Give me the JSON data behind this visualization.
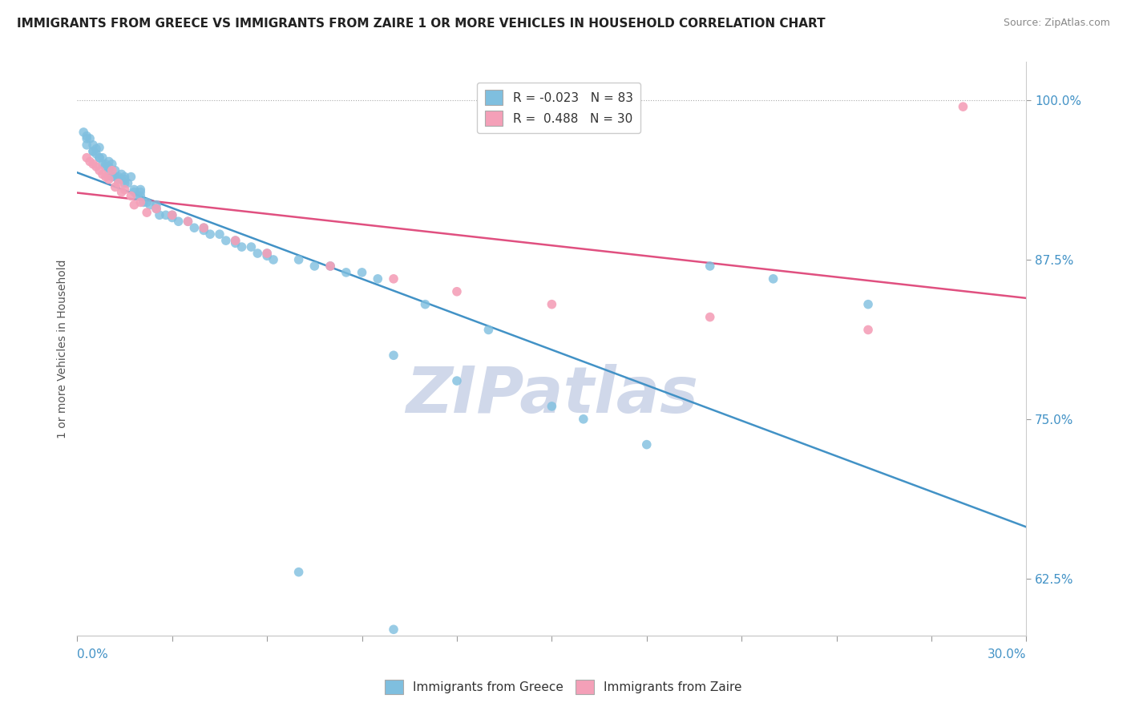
{
  "title": "IMMIGRANTS FROM GREECE VS IMMIGRANTS FROM ZAIRE 1 OR MORE VEHICLES IN HOUSEHOLD CORRELATION CHART",
  "source": "Source: ZipAtlas.com",
  "ylabel_label": "1 or more Vehicles in Household",
  "legend_blue_label": "Immigrants from Greece",
  "legend_pink_label": "Immigrants from Zaire",
  "R_blue": -0.023,
  "N_blue": 83,
  "R_pink": 0.488,
  "N_pink": 30,
  "x_min": 0.0,
  "x_max": 30.0,
  "y_min": 58.0,
  "y_max": 103.0,
  "blue_color": "#7fbfdf",
  "pink_color": "#f4a0b8",
  "blue_line_color": "#4292c6",
  "pink_line_color": "#e05080",
  "watermark_color": "#d0d8ea",
  "blue_scatter_x": [
    0.2,
    0.3,
    0.3,
    0.4,
    0.5,
    0.5,
    0.6,
    0.6,
    0.7,
    0.7,
    0.8,
    0.8,
    0.9,
    0.9,
    1.0,
    1.0,
    1.0,
    1.1,
    1.1,
    1.2,
    1.2,
    1.3,
    1.3,
    1.4,
    1.4,
    1.5,
    1.5,
    1.6,
    1.7,
    1.8,
    1.8,
    1.9,
    2.0,
    2.0,
    2.1,
    2.2,
    2.3,
    2.5,
    2.6,
    2.8,
    3.0,
    3.2,
    3.5,
    3.7,
    4.0,
    4.2,
    4.5,
    4.7,
    5.0,
    5.2,
    5.5,
    5.7,
    6.0,
    6.2,
    7.0,
    7.5,
    8.0,
    8.5,
    9.0,
    9.5,
    10.0,
    11.0,
    12.0,
    13.0,
    15.0,
    16.0,
    18.0,
    20.0,
    22.0,
    25.0,
    0.3,
    0.5,
    0.7,
    1.0,
    1.5,
    2.0,
    2.5,
    3.0,
    4.0,
    5.0,
    6.0,
    7.0,
    10.0
  ],
  "blue_scatter_y": [
    97.5,
    97.0,
    96.5,
    97.0,
    96.5,
    96.0,
    95.8,
    96.2,
    96.3,
    95.5,
    95.5,
    95.0,
    95.0,
    94.8,
    94.8,
    95.2,
    94.5,
    95.0,
    94.0,
    94.5,
    94.0,
    94.0,
    93.8,
    93.8,
    94.2,
    93.5,
    94.0,
    93.5,
    94.0,
    93.0,
    92.8,
    92.5,
    92.5,
    93.0,
    92.0,
    92.0,
    91.8,
    91.5,
    91.0,
    91.0,
    91.0,
    90.5,
    90.5,
    90.0,
    90.0,
    89.5,
    89.5,
    89.0,
    89.0,
    88.5,
    88.5,
    88.0,
    88.0,
    87.5,
    87.5,
    87.0,
    87.0,
    86.5,
    86.5,
    86.0,
    80.0,
    84.0,
    78.0,
    82.0,
    76.0,
    75.0,
    73.0,
    87.0,
    86.0,
    84.0,
    97.2,
    96.0,
    95.5,
    94.7,
    93.8,
    92.8,
    91.8,
    90.8,
    89.8,
    88.8,
    87.8,
    63.0,
    58.5
  ],
  "pink_scatter_x": [
    0.3,
    0.4,
    0.5,
    0.6,
    0.7,
    0.8,
    0.9,
    1.0,
    1.1,
    1.2,
    1.3,
    1.4,
    1.5,
    1.7,
    1.8,
    2.0,
    2.2,
    2.5,
    3.0,
    3.5,
    4.0,
    5.0,
    6.0,
    8.0,
    10.0,
    12.0,
    15.0,
    20.0,
    25.0,
    28.0
  ],
  "pink_scatter_y": [
    95.5,
    95.2,
    95.0,
    94.8,
    94.5,
    94.2,
    94.0,
    93.8,
    94.5,
    93.2,
    93.5,
    92.8,
    93.0,
    92.5,
    91.8,
    92.0,
    91.2,
    91.5,
    91.0,
    90.5,
    90.0,
    89.0,
    88.0,
    87.0,
    86.0,
    85.0,
    84.0,
    83.0,
    82.0,
    99.5
  ]
}
